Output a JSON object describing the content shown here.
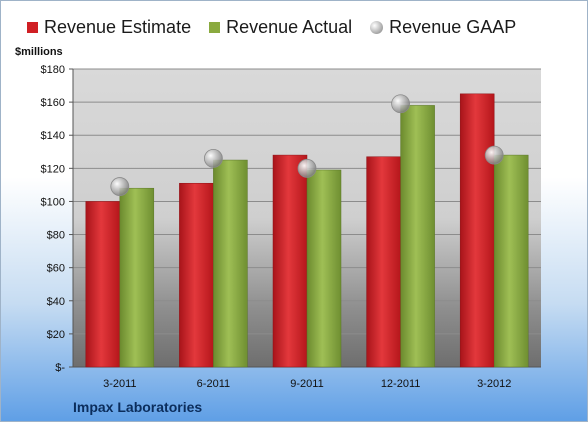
{
  "chart_data": {
    "type": "bar",
    "company": "Impax Laboratories",
    "unit_label": "$millions",
    "categories": [
      "3-2011",
      "6-2011",
      "9-2011",
      "12-2011",
      "3-2012"
    ],
    "series": [
      {
        "name": "Revenue Estimate",
        "type": "bar",
        "color": "#d01f24",
        "values": [
          100,
          111,
          128,
          127,
          165
        ]
      },
      {
        "name": "Revenue Actual",
        "type": "bar",
        "color": "#8aaa3f",
        "values": [
          108,
          125,
          119,
          158,
          128
        ]
      },
      {
        "name": "Revenue GAAP",
        "type": "scatter",
        "color": "#b8b8b8",
        "values": [
          109,
          126,
          120,
          159,
          128
        ]
      }
    ],
    "y_ticks": [
      "$-",
      "$20",
      "$40",
      "$60",
      "$80",
      "$100",
      "$120",
      "$140",
      "$160",
      "$180"
    ],
    "ylim": [
      0,
      180
    ],
    "grid": true,
    "legend_position": "top"
  }
}
